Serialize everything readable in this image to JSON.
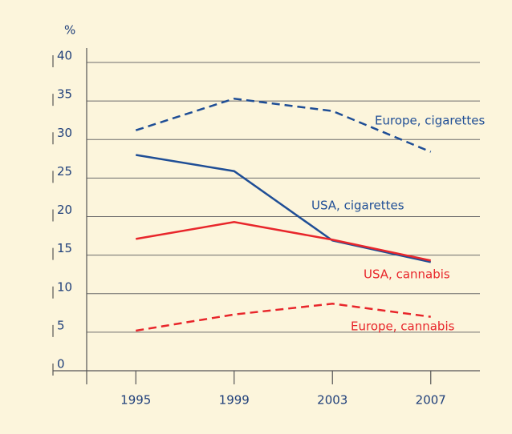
{
  "chart_data": {
    "type": "line",
    "y_label": "%",
    "x": [
      1995,
      1999,
      2003,
      2007
    ],
    "xlim": [
      1993,
      2009
    ],
    "xticks": [
      1995,
      1999,
      2003,
      2007
    ],
    "ylim": [
      0,
      40
    ],
    "yticks": [
      0,
      5,
      10,
      15,
      20,
      25,
      30,
      35,
      40
    ],
    "grid": true,
    "series": [
      {
        "name": "Europe, cigarettes",
        "color": "#1f4e96",
        "dashed": true,
        "values": [
          31.2,
          35.3,
          33.7,
          28.4
        ]
      },
      {
        "name": "USA, cigarettes",
        "color": "#1f4e96",
        "dashed": false,
        "values": [
          28,
          25.9,
          16.9,
          14.1
        ]
      },
      {
        "name": "USA, cannabis",
        "color": "#e8262b",
        "dashed": false,
        "values": [
          17.1,
          19.3,
          17,
          14.3
        ]
      },
      {
        "name": "Europe, cannabis",
        "color": "#e8262b",
        "dashed": true,
        "values": [
          5.2,
          7.3,
          8.7,
          7
        ]
      }
    ]
  }
}
